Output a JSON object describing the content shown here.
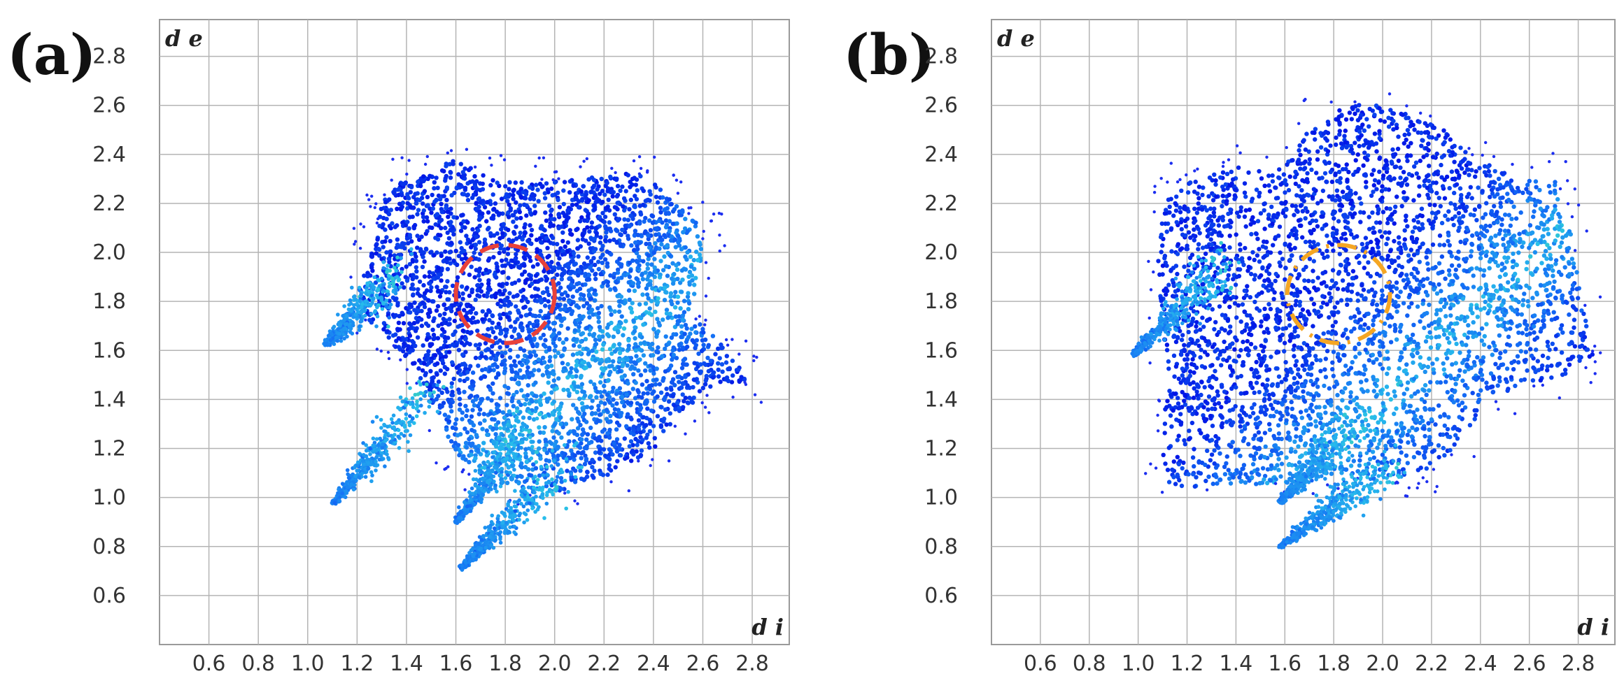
{
  "panels": [
    {
      "id": "a",
      "label": "(a)",
      "ring_color": "#e8413a"
    },
    {
      "id": "b",
      "label": "(b)",
      "ring_color": "#f5a623"
    }
  ],
  "chart_data": [
    {
      "type": "heatmap",
      "title": "",
      "xlabel": "d i",
      "ylabel": "d e",
      "xlim": [
        0.4,
        2.95
      ],
      "ylim": [
        0.4,
        2.95
      ],
      "x_ticks": [
        "0.6",
        "0.8",
        "1.0",
        "1.2",
        "1.4",
        "1.6",
        "1.8",
        "2.0",
        "2.2",
        "2.4",
        "2.6",
        "2.8"
      ],
      "y_ticks": [
        "0.6",
        "0.8",
        "1.0",
        "1.2",
        "1.4",
        "1.6",
        "1.8",
        "2.0",
        "2.2",
        "2.4",
        "2.6",
        "2.8"
      ],
      "grid": true,
      "highlight_region": {
        "center": [
          1.8,
          1.83
        ],
        "radius_x": 0.2,
        "radius_y": 0.2,
        "style": "dashed",
        "color": "#e8413a"
      },
      "spikes": [
        {
          "from": [
            1.35,
            1.9
          ],
          "to": [
            1.07,
            1.62
          ]
        },
        {
          "from": [
            1.5,
            1.45
          ],
          "to": [
            1.1,
            0.97
          ]
        },
        {
          "from": [
            1.9,
            1.3
          ],
          "to": [
            1.6,
            0.9
          ]
        },
        {
          "from": [
            2.05,
            1.15
          ],
          "to": [
            1.62,
            0.71
          ]
        }
      ]
    },
    {
      "type": "heatmap",
      "title": "",
      "xlabel": "d i",
      "ylabel": "d e",
      "xlim": [
        0.4,
        2.95
      ],
      "ylim": [
        0.4,
        2.95
      ],
      "x_ticks": [
        "0.6",
        "0.8",
        "1.0",
        "1.2",
        "1.4",
        "1.6",
        "1.8",
        "2.0",
        "2.2",
        "2.4",
        "2.6",
        "2.8"
      ],
      "y_ticks": [
        "0.6",
        "0.8",
        "1.0",
        "1.2",
        "1.4",
        "1.6",
        "1.8",
        "2.0",
        "2.2",
        "2.4",
        "2.6",
        "2.8"
      ],
      "grid": true,
      "highlight_region": {
        "center": [
          1.82,
          1.83
        ],
        "radius_x": 0.21,
        "radius_y": 0.2,
        "style": "dash-dot",
        "color": "#f5a623"
      },
      "spikes": [
        {
          "from": [
            1.35,
            1.95
          ],
          "to": [
            0.98,
            1.58
          ]
        },
        {
          "from": [
            1.9,
            1.3
          ],
          "to": [
            1.58,
            0.98
          ]
        },
        {
          "from": [
            2.05,
            1.15
          ],
          "to": [
            1.58,
            0.8
          ]
        }
      ]
    }
  ]
}
